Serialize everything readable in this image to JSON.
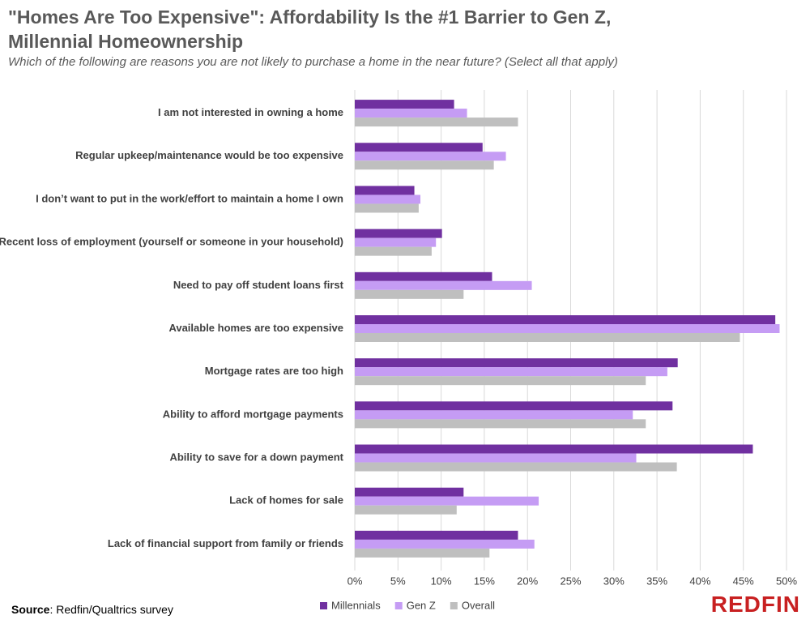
{
  "chart_data": {
    "type": "bar",
    "orientation": "horizontal",
    "title": "\"Homes Are Too Expensive\": Affordability Is the #1 Barrier to Gen Z, Millennial Homeownership",
    "subtitle": "Which of the following are reasons you are not likely to purchase a home in the near future? (Select all that apply)",
    "categories": [
      "I am not interested in owning a home",
      "Regular upkeep/maintenance would be too expensive",
      "I don’t want to put in the work/effort to maintain a home I own",
      "Recent loss of employment (yourself or someone in your household)",
      "Need to pay off student loans first",
      "Available homes are too expensive",
      "Mortgage rates are too high",
      "Ability to afford mortgage payments",
      "Ability to save for a down payment",
      "Lack of homes for sale",
      "Lack of financial support from family or friends"
    ],
    "series": [
      {
        "name": "Millennials",
        "color": "#7030a0",
        "values": [
          11.5,
          14.8,
          6.9,
          10.1,
          15.9,
          48.7,
          37.4,
          36.8,
          46.1,
          12.6,
          18.9
        ]
      },
      {
        "name": "Gen Z",
        "color": "#c59cf4",
        "values": [
          13.0,
          17.5,
          7.6,
          9.4,
          20.5,
          49.2,
          36.2,
          32.2,
          32.6,
          21.3,
          20.8
        ]
      },
      {
        "name": "Overall",
        "color": "#bfbfbf",
        "values": [
          18.9,
          16.1,
          7.4,
          8.9,
          12.6,
          44.6,
          33.7,
          33.7,
          37.3,
          11.8,
          15.6
        ]
      }
    ],
    "xlim": [
      0,
      50
    ],
    "xticks": [
      {
        "value": 0,
        "label": "0%"
      },
      {
        "value": 5,
        "label": "5%"
      },
      {
        "value": 10,
        "label": "10%"
      },
      {
        "value": 15,
        "label": "15%"
      },
      {
        "value": 20,
        "label": "20%"
      },
      {
        "value": 25,
        "label": "25%"
      },
      {
        "value": 30,
        "label": "30%"
      },
      {
        "value": 35,
        "label": "35%"
      },
      {
        "value": 40,
        "label": "40%"
      },
      {
        "value": 45,
        "label": "45%"
      },
      {
        "value": 50,
        "label": "50%"
      }
    ],
    "grid": true,
    "legend": "bottom",
    "source_label": "Source",
    "source_text": ": Redfin/Qualtrics survey",
    "logo": "REDFIN"
  }
}
